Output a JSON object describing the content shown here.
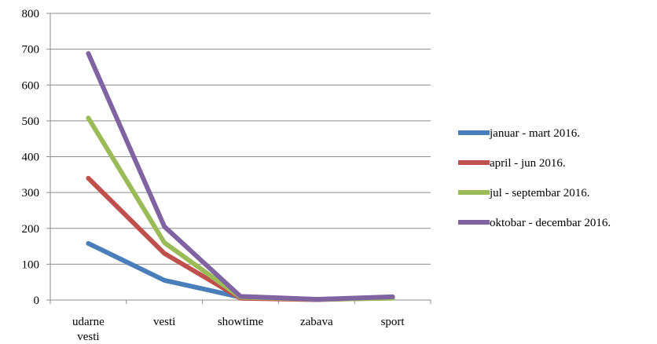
{
  "chart_data": {
    "type": "line",
    "categories": [
      "udarne vesti",
      "vesti",
      "showtime",
      "zabava",
      "sport"
    ],
    "category_lines": [
      [
        "udarne",
        "vesti"
      ],
      [
        "vesti"
      ],
      [
        "showtime"
      ],
      [
        "zabava"
      ],
      [
        "sport"
      ]
    ],
    "ylim": [
      0,
      800
    ],
    "yticks": [
      0,
      100,
      200,
      300,
      400,
      500,
      600,
      700,
      800
    ],
    "grid": true,
    "legend": "right",
    "series": [
      {
        "name": "januar - mart 2016.",
        "color": "#4A7EBB",
        "values": [
          158,
          55,
          8,
          2,
          6
        ]
      },
      {
        "name": "april - jun 2016.",
        "color": "#C0504D",
        "values": [
          340,
          130,
          5,
          1,
          6
        ]
      },
      {
        "name": "jul - septembar 2016.",
        "color": "#9BBB59",
        "values": [
          508,
          160,
          8,
          2,
          5
        ]
      },
      {
        "name": "oktobar - decembar 2016.",
        "color": "#8064A2",
        "values": [
          688,
          205,
          10,
          2,
          9
        ]
      }
    ]
  }
}
